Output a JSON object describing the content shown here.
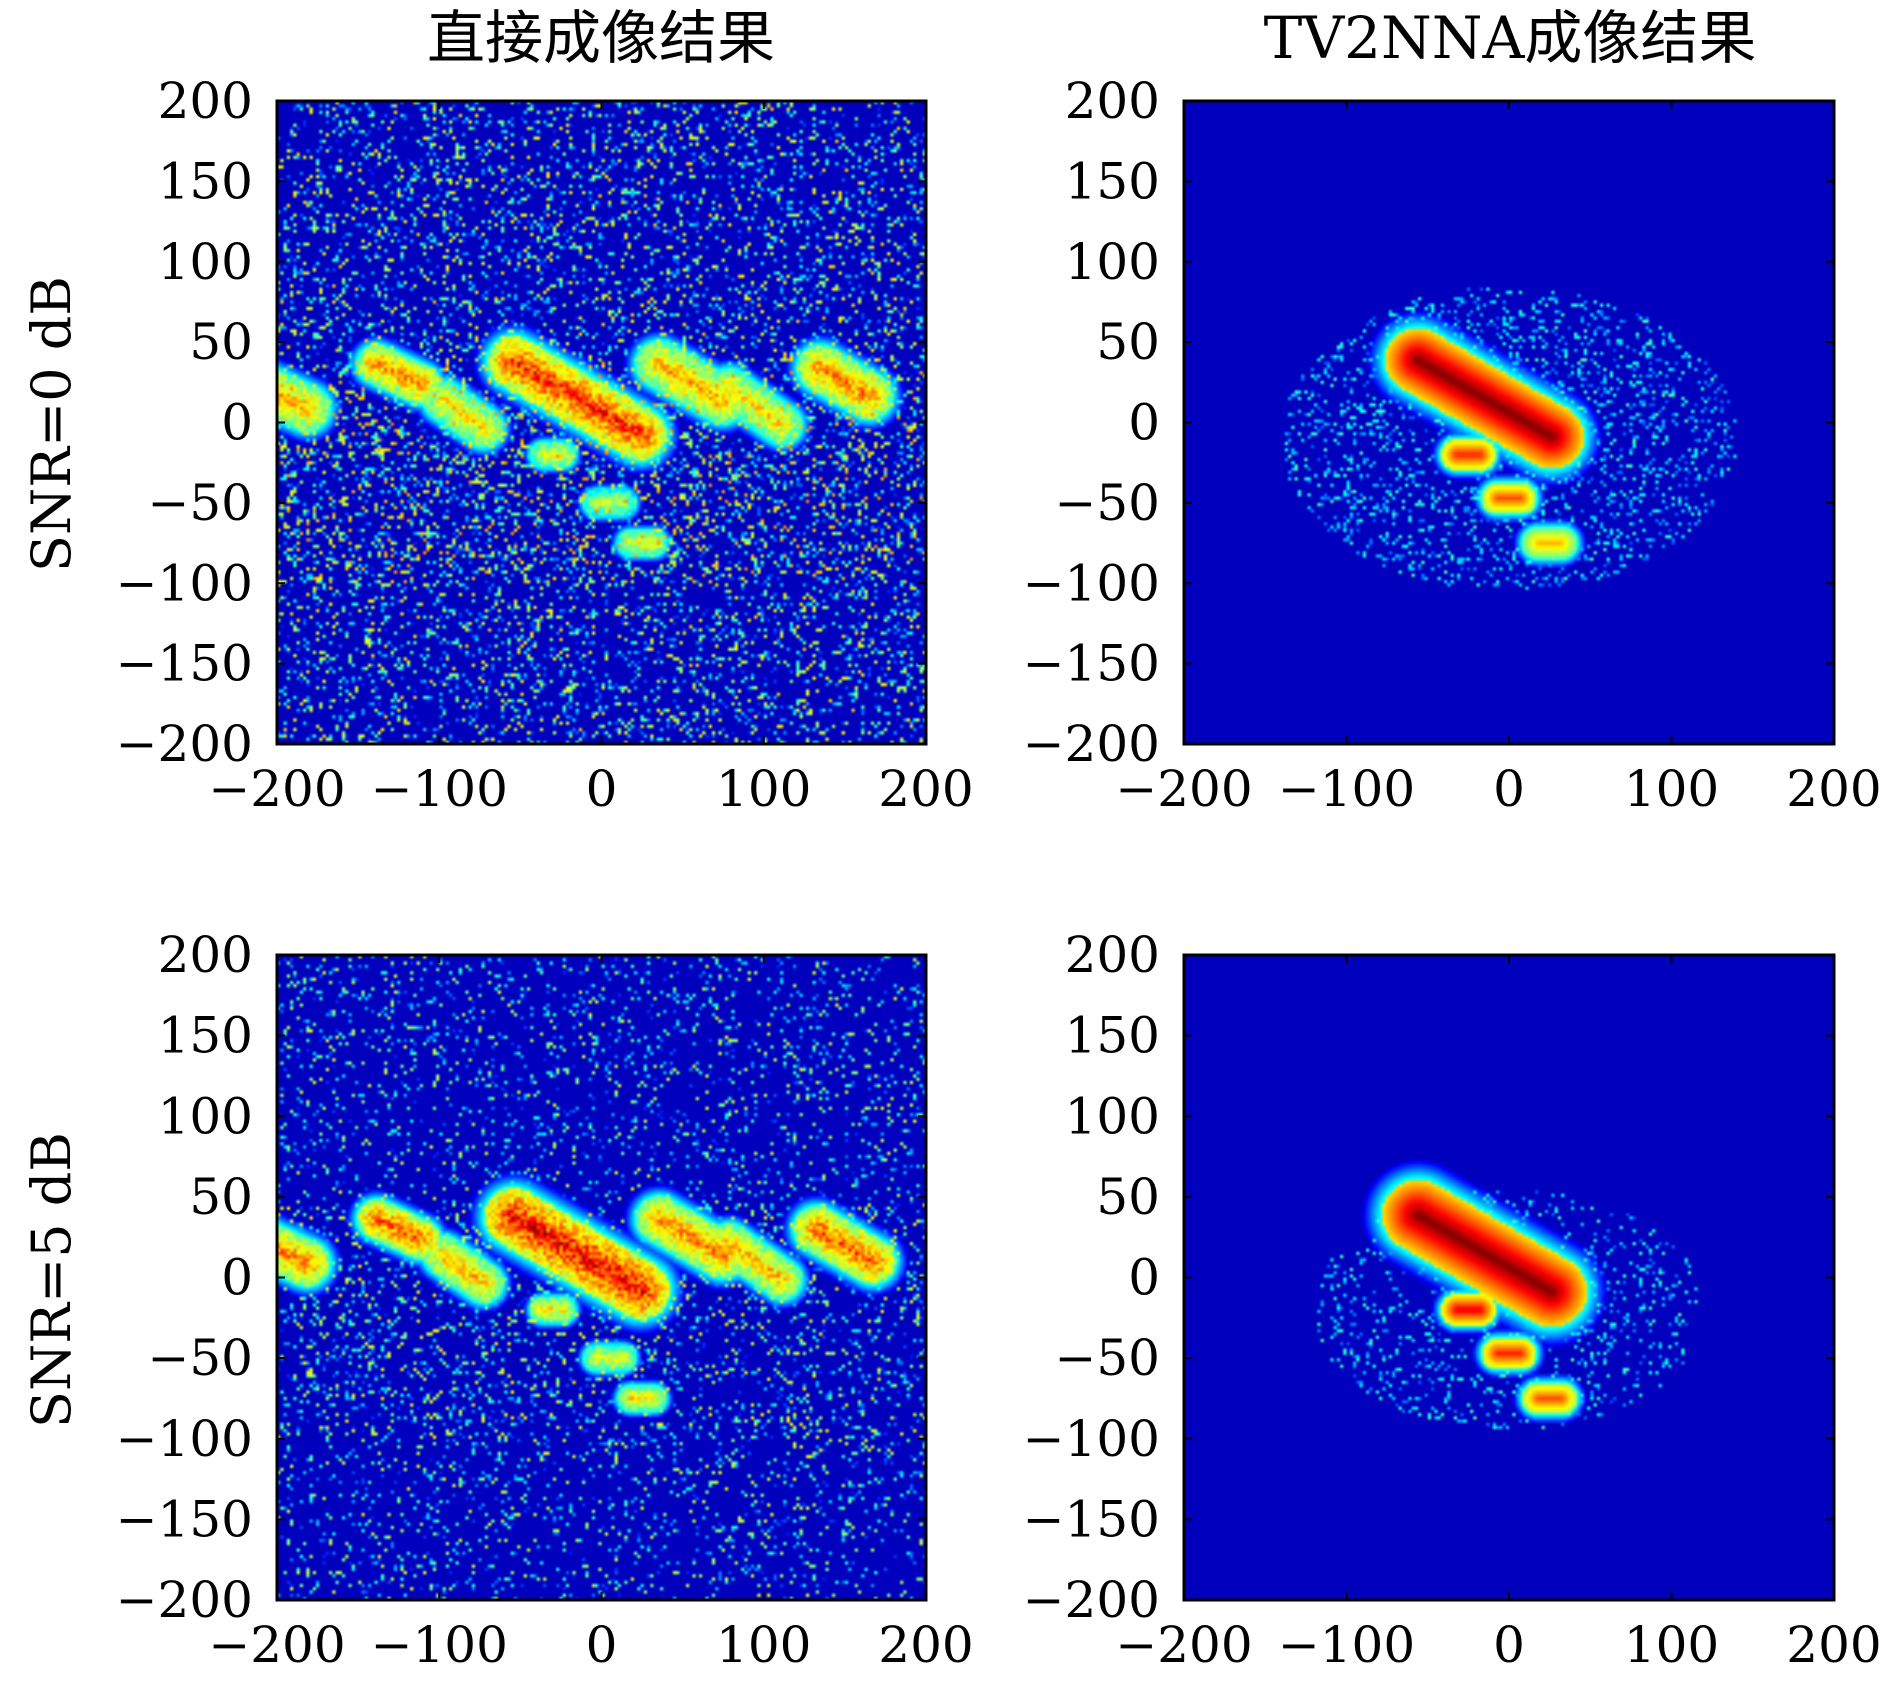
{
  "column_titles": [
    "直接成像结果",
    "TV2NNA成像结果"
  ],
  "row_labels": [
    "SNR=0 dB",
    "SNR=5 dB"
  ],
  "colors": {
    "background": "#00008b",
    "colormap": "jet",
    "frame": "#000000"
  },
  "chart_data": [
    {
      "type": "heatmap",
      "title": "直接成像结果",
      "row_label": "SNR=0 dB",
      "xlabel": "",
      "ylabel": "",
      "xlim": [
        -200,
        200
      ],
      "ylim": [
        -200,
        200
      ],
      "xticks": [
        -200,
        -100,
        0,
        100,
        200
      ],
      "yticks": [
        200,
        150,
        100,
        50,
        0,
        -50,
        -100,
        -150,
        -200
      ],
      "xtick_labels": [
        "−200",
        "−100",
        "0",
        "100",
        "200"
      ],
      "ytick_labels": [
        "200",
        "150",
        "100",
        "50",
        "0",
        "−50",
        "−100",
        "−150",
        "−200"
      ],
      "noise_level": 0.5,
      "band_y": [
        -100,
        40
      ],
      "bright_regions": [
        {
          "cx": -195,
          "cy": 15,
          "len": 30,
          "angle": -25,
          "width": 14,
          "intensity": 0.8
        },
        {
          "cx": -125,
          "cy": 30,
          "len": 30,
          "angle": -25,
          "width": 12,
          "intensity": 0.85
        },
        {
          "cx": -85,
          "cy": 5,
          "len": 30,
          "angle": -35,
          "width": 12,
          "intensity": 0.75
        },
        {
          "cx": -15,
          "cy": 15,
          "len": 90,
          "angle": -30,
          "width": 16,
          "intensity": 0.95
        },
        {
          "cx": 55,
          "cy": 25,
          "len": 45,
          "angle": -30,
          "width": 14,
          "intensity": 0.8
        },
        {
          "cx": 95,
          "cy": 10,
          "len": 40,
          "angle": -35,
          "width": 12,
          "intensity": 0.75
        },
        {
          "cx": 150,
          "cy": 25,
          "len": 35,
          "angle": -30,
          "width": 14,
          "intensity": 0.85
        },
        {
          "cx": -30,
          "cy": -20,
          "len": 12,
          "angle": 0,
          "width": 8,
          "intensity": 0.7
        },
        {
          "cx": 25,
          "cy": -75,
          "len": 14,
          "angle": 0,
          "width": 8,
          "intensity": 0.7
        },
        {
          "cx": 5,
          "cy": -50,
          "len": 16,
          "angle": 0,
          "width": 8,
          "intensity": 0.65
        }
      ]
    },
    {
      "type": "heatmap",
      "title": "TV2NNA成像结果",
      "row_label": "SNR=0 dB",
      "xlabel": "",
      "ylabel": "",
      "xlim": [
        -200,
        200
      ],
      "ylim": [
        -200,
        200
      ],
      "xticks": [
        -200,
        -100,
        0,
        100,
        200
      ],
      "yticks": [
        200,
        150,
        100,
        50,
        0,
        -50,
        -100,
        -150,
        -200
      ],
      "xtick_labels": [
        "−200",
        "−100",
        "0",
        "100",
        "200"
      ],
      "ytick_labels": [
        "200",
        "150",
        "100",
        "50",
        "0",
        "−50",
        "−100",
        "−150",
        "−200"
      ],
      "noise_level": 0.0,
      "scatter_region": {
        "cx": 0,
        "cy": -10,
        "rx": 140,
        "ry": 95,
        "density": 0.35
      },
      "bright_regions": [
        {
          "cx": -15,
          "cy": 15,
          "len": 95,
          "angle": -30,
          "width": 20,
          "intensity": 1.0
        },
        {
          "cx": -25,
          "cy": -20,
          "len": 14,
          "angle": 0,
          "width": 10,
          "intensity": 0.85
        },
        {
          "cx": 0,
          "cy": -47,
          "len": 14,
          "angle": 0,
          "width": 10,
          "intensity": 0.8
        },
        {
          "cx": 25,
          "cy": -75,
          "len": 14,
          "angle": 0,
          "width": 10,
          "intensity": 0.7
        }
      ]
    },
    {
      "type": "heatmap",
      "title": "直接成像结果",
      "row_label": "SNR=5 dB",
      "xlabel": "",
      "ylabel": "",
      "xlim": [
        -200,
        200
      ],
      "ylim": [
        -200,
        200
      ],
      "xticks": [
        -200,
        -100,
        0,
        100,
        200
      ],
      "yticks": [
        200,
        150,
        100,
        50,
        0,
        -50,
        -100,
        -150,
        -200
      ],
      "xtick_labels": [
        "−200",
        "−100",
        "0",
        "100",
        "200"
      ],
      "ytick_labels": [
        "200",
        "150",
        "100",
        "50",
        "0",
        "−50",
        "−100",
        "−150",
        "−200"
      ],
      "noise_level": 0.3,
      "band_y": [
        -100,
        45
      ],
      "bright_regions": [
        {
          "cx": -195,
          "cy": 15,
          "len": 30,
          "angle": -25,
          "width": 14,
          "intensity": 0.85
        },
        {
          "cx": -125,
          "cy": 30,
          "len": 30,
          "angle": -25,
          "width": 12,
          "intensity": 0.9
        },
        {
          "cx": -85,
          "cy": 5,
          "len": 30,
          "angle": -35,
          "width": 12,
          "intensity": 0.8
        },
        {
          "cx": -15,
          "cy": 15,
          "len": 90,
          "angle": -30,
          "width": 18,
          "intensity": 1.0
        },
        {
          "cx": 55,
          "cy": 25,
          "len": 45,
          "angle": -30,
          "width": 14,
          "intensity": 0.85
        },
        {
          "cx": 95,
          "cy": 10,
          "len": 40,
          "angle": -35,
          "width": 12,
          "intensity": 0.8
        },
        {
          "cx": 150,
          "cy": 20,
          "len": 40,
          "angle": -30,
          "width": 14,
          "intensity": 0.9
        },
        {
          "cx": -30,
          "cy": -20,
          "len": 12,
          "angle": 0,
          "width": 8,
          "intensity": 0.75
        },
        {
          "cx": 25,
          "cy": -75,
          "len": 14,
          "angle": 0,
          "width": 8,
          "intensity": 0.75
        },
        {
          "cx": 5,
          "cy": -50,
          "len": 16,
          "angle": 0,
          "width": 8,
          "intensity": 0.7
        }
      ]
    },
    {
      "type": "heatmap",
      "title": "TV2NNA成像结果",
      "row_label": "SNR=5 dB",
      "xlabel": "",
      "ylabel": "",
      "xlim": [
        -200,
        200
      ],
      "ylim": [
        -200,
        200
      ],
      "xticks": [
        -200,
        -100,
        0,
        100,
        200
      ],
      "yticks": [
        200,
        150,
        100,
        50,
        0,
        -50,
        -100,
        -150,
        -200
      ],
      "xtick_labels": [
        "−200",
        "−100",
        "0",
        "100",
        "200"
      ],
      "ytick_labels": [
        "200",
        "150",
        "100",
        "50",
        "0",
        "−50",
        "−100",
        "−150",
        "−200"
      ],
      "noise_level": 0.0,
      "scatter_region": {
        "cx": 0,
        "cy": -20,
        "rx": 120,
        "ry": 75,
        "density": 0.25
      },
      "bright_regions": [
        {
          "cx": -15,
          "cy": 15,
          "len": 95,
          "angle": -30,
          "width": 22,
          "intensity": 1.0
        },
        {
          "cx": -25,
          "cy": -20,
          "len": 14,
          "angle": 0,
          "width": 10,
          "intensity": 0.9
        },
        {
          "cx": 0,
          "cy": -47,
          "len": 14,
          "angle": 0,
          "width": 10,
          "intensity": 0.85
        },
        {
          "cx": 25,
          "cy": -75,
          "len": 14,
          "angle": 0,
          "width": 10,
          "intensity": 0.8
        }
      ]
    }
  ]
}
